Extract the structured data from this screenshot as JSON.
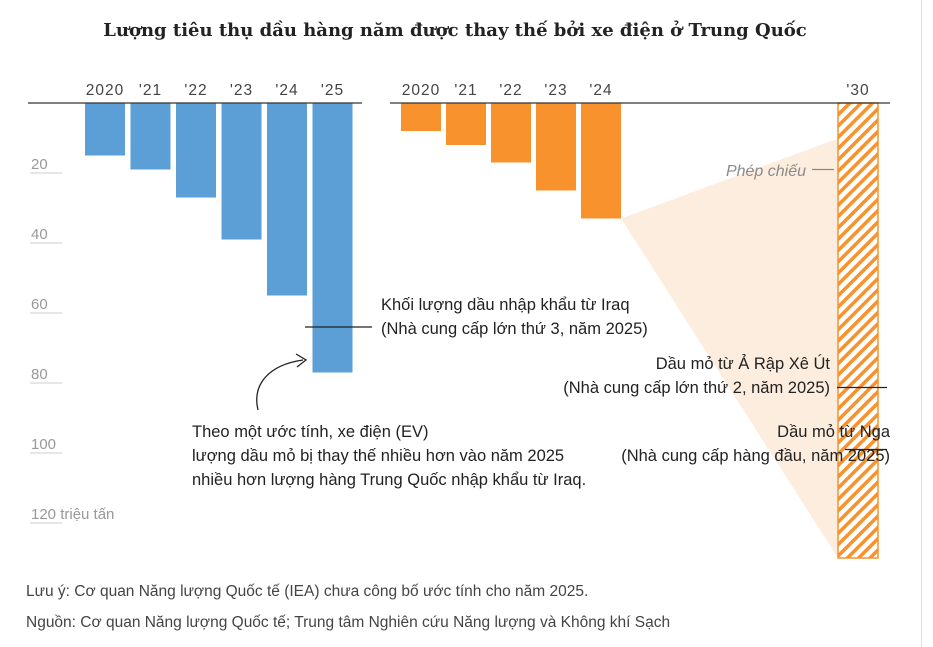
{
  "title": "Lượng tiêu thụ dầu hàng năm được thay thế bởi xe điện ở Trung Quốc",
  "chart_data": {
    "type": "bar",
    "orientation": "downward",
    "y_unit": "triệu tấn",
    "ylim": [
      0,
      120
    ],
    "y_ticks": [
      20,
      40,
      60,
      80,
      100,
      120
    ],
    "y_tick_labels": [
      "20",
      "40",
      "60",
      "80",
      "100",
      "120 triệu tấn"
    ],
    "panels": [
      {
        "name": "ev_displacement",
        "color": "#5b9fd6",
        "categories": [
          "2020",
          "'21",
          "'22",
          "'23",
          "'24",
          "'25"
        ],
        "values": [
          15,
          19,
          27,
          39,
          55,
          77
        ]
      },
      {
        "name": "oil_imports",
        "color": "#f7922d",
        "categories": [
          "2020",
          "'21",
          "'22",
          "'23",
          "'24",
          "'30"
        ],
        "values": [
          8,
          12,
          17,
          25,
          33,
          130
        ],
        "projected_category": "'30",
        "projection_color": "#fde9d6",
        "hatch_color": "#f7922d"
      }
    ],
    "annotations": [
      {
        "lines": [
          "Khối lượng dầu nhập khẩu từ Iraq",
          "(Nhà cung cấp lớn thứ 3, năm 2025)"
        ],
        "panel": 0,
        "value": 64
      },
      {
        "lines": [
          "Dầu mỏ từ Ả Rập Xê Út",
          "(Nhà cung cấp lớn thứ 2, năm 2025)"
        ],
        "panel": 1,
        "value": 81
      },
      {
        "lines": [
          "Dầu mỏ từ Nga",
          "(Nhà cung cấp hàng đầu, năm 2025)"
        ],
        "panel": 1,
        "value": 99
      },
      {
        "lines": [
          "Theo một ước tính, xe điện (EV)",
          "lượng dầu mỏ bị thay thế nhiều hơn vào năm 2025",
          "nhiều hơn lượng hàng Trung Quốc nhập khẩu từ Iraq."
        ],
        "panel": 0,
        "value": 100
      },
      {
        "lines": [
          "Phép chiếu"
        ],
        "panel": 1,
        "value": 19
      }
    ]
  },
  "notes": {
    "note": "Lưu ý: Cơ quan Năng lượng Quốc tế (IEA) chưa công bố ước tính cho năm 2025.",
    "source": "Nguồn: Cơ quan Năng lượng Quốc tế; Trung tâm Nghiên cứu Năng lượng và Không khí Sạch"
  }
}
